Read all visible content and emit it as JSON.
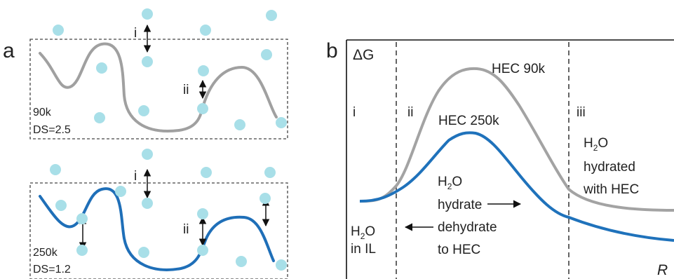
{
  "colors": {
    "water": "#a8dfe8",
    "chain_90k": "#a0a0a0",
    "chain_250k": "#1f6fb8",
    "curve_90k": "#a3a3a3",
    "curve_250k": "#1f72bb",
    "text": "#222222"
  },
  "panel_a": {
    "letter": "a",
    "top": {
      "mw": "90k",
      "ds": "DS=2.5",
      "label_i": "i",
      "label_ii": "ii"
    },
    "bottom": {
      "mw": "250k",
      "ds": "DS=1.2",
      "label_i": "i",
      "label_ii": "ii"
    }
  },
  "panel_b": {
    "letter": "b",
    "y_axis": "ΔG",
    "x_axis": "R",
    "regions": [
      "i",
      "ii",
      "iii"
    ],
    "curve_labels": [
      "HEC 90k",
      "HEC 250k"
    ],
    "annotations": {
      "water_in_il": {
        "h": "H",
        "sub": "2",
        "o": "O",
        "line2": "in IL"
      },
      "hydrate": {
        "h": "H",
        "sub": "2",
        "o": "O",
        "line2": "hydrate"
      },
      "dehydrate": {
        "line1": "dehydrate",
        "line2": "to HEC"
      },
      "hydrated": {
        "h": "H",
        "sub": "2",
        "o": "O",
        "line2": "hydrated",
        "line3": "with HEC"
      }
    }
  }
}
